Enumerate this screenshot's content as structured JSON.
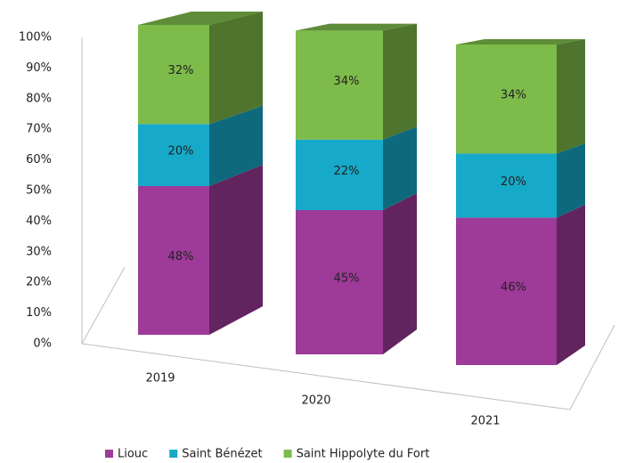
{
  "chart_data": {
    "type": "bar3d-stacked",
    "categories": [
      "2019",
      "2020",
      "2021"
    ],
    "series": [
      {
        "name": "Liouc",
        "color": "#9e3a98",
        "values": [
          48,
          45,
          46
        ],
        "value_labels": [
          "48%",
          "45%",
          "46%"
        ]
      },
      {
        "name": "Saint Bénézet",
        "color": "#17a9c9",
        "values": [
          20,
          22,
          20
        ],
        "value_labels": [
          "20%",
          "22%",
          "20%"
        ]
      },
      {
        "name": "Saint Hippolyte du Fort",
        "color": "#7dbb4a",
        "values": [
          32,
          34,
          34
        ],
        "value_labels": [
          "32%",
          "34%",
          "34%"
        ]
      }
    ],
    "ylim": [
      0,
      100
    ],
    "yticks": [
      {
        "value": 0,
        "label": "0%"
      },
      {
        "value": 10,
        "label": "10%"
      },
      {
        "value": 20,
        "label": "20%"
      },
      {
        "value": 30,
        "label": "30%"
      },
      {
        "value": 40,
        "label": "40%"
      },
      {
        "value": 50,
        "label": "50%"
      },
      {
        "value": 60,
        "label": "60%"
      },
      {
        "value": 70,
        "label": "70%"
      },
      {
        "value": 80,
        "label": "80%"
      },
      {
        "value": 90,
        "label": "90%"
      },
      {
        "value": 100,
        "label": "100%"
      }
    ],
    "legend": "bottom"
  }
}
